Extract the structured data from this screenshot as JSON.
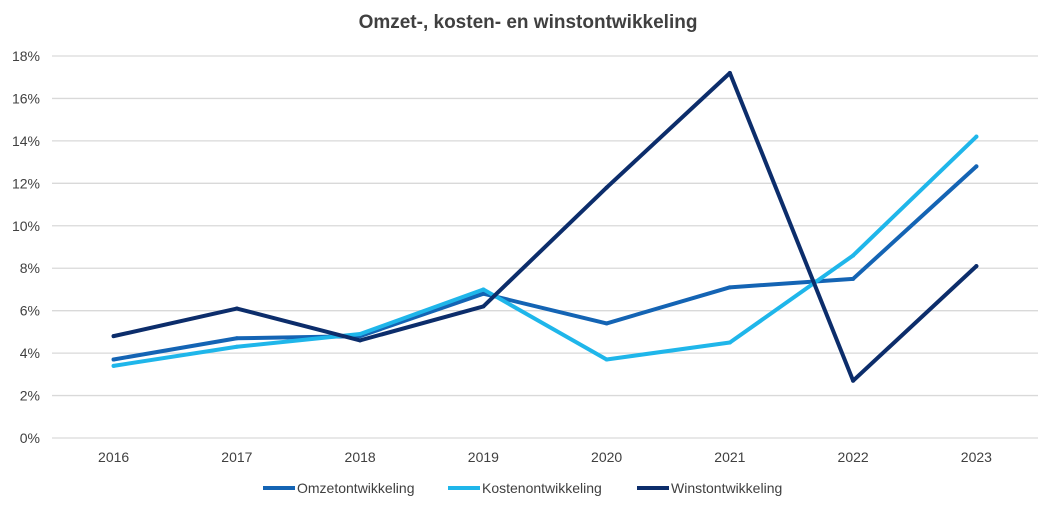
{
  "chart_data": {
    "type": "line",
    "title": "Omzet-, kosten- en winstontwikkeling",
    "xlabel": "",
    "ylabel": "",
    "categories": [
      "2016",
      "2017",
      "2018",
      "2019",
      "2020",
      "2021",
      "2022",
      "2023"
    ],
    "ylim": [
      0,
      18
    ],
    "yticks": [
      0,
      2,
      4,
      6,
      8,
      10,
      12,
      14,
      16,
      18
    ],
    "ytick_labels": [
      "0%",
      "2%",
      "4%",
      "6%",
      "8%",
      "10%",
      "12%",
      "14%",
      "16%",
      "18%"
    ],
    "grid": true,
    "legend_position": "bottom",
    "series": [
      {
        "name": "Omzetontwikkeling",
        "color": "#1464b4",
        "values": [
          3.7,
          4.7,
          4.8,
          6.8,
          5.4,
          7.1,
          7.5,
          12.8
        ]
      },
      {
        "name": "Kostenontwikkeling",
        "color": "#1fb6ea",
        "values": [
          3.4,
          4.3,
          4.9,
          7.0,
          3.7,
          4.5,
          8.6,
          14.2
        ]
      },
      {
        "name": "Winstontwikkeling",
        "color": "#0c2d6b",
        "values": [
          4.8,
          6.1,
          4.6,
          6.2,
          11.8,
          17.2,
          2.7,
          8.1
        ]
      }
    ]
  }
}
